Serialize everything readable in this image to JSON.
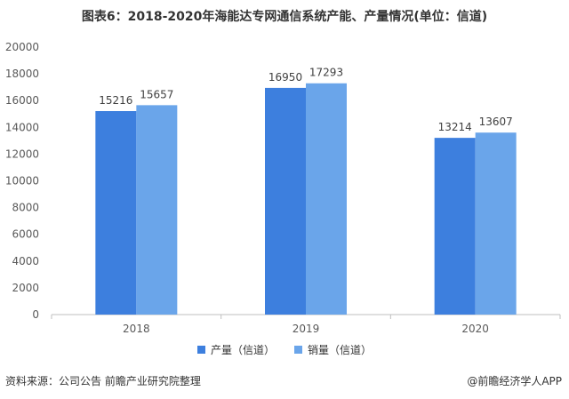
{
  "title": "图表6：2018-2020年海能达专网通信系统产能、产量情况(单位：信道)",
  "source": "资料来源：公司公告 前瞻产业研究院整理",
  "brand": "@前瞻经济学人APP",
  "colors": {
    "series1": "#3d7fde",
    "series2": "#6aa5ea",
    "axis": "#bfbfbf"
  },
  "chart_data": {
    "type": "bar",
    "categories": [
      "2018",
      "2019",
      "2020"
    ],
    "series": [
      {
        "name": "产量（信道）",
        "values": [
          15216,
          16950,
          13214
        ]
      },
      {
        "name": "销量（信道）",
        "values": [
          15657,
          17293,
          13607
        ]
      }
    ],
    "ylim": [
      0,
      20000
    ],
    "yticks": [
      0,
      2000,
      4000,
      6000,
      8000,
      10000,
      12000,
      14000,
      16000,
      18000,
      20000
    ],
    "grid": false,
    "legend": "bottom"
  }
}
